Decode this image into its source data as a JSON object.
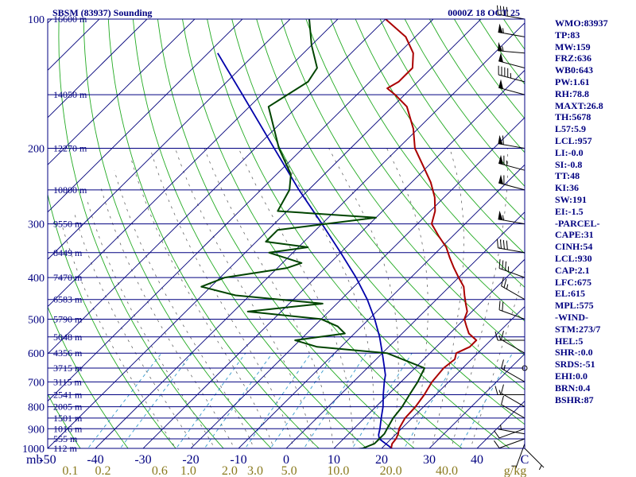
{
  "header": {
    "station": "SBSM (83937) Sounding",
    "time": "0000Z 18 OCT 25"
  },
  "colors": {
    "frame": "#000080",
    "isotherm": "#00007a",
    "isobar": "#000080",
    "dry_adiabat": "#22aa22",
    "moist_adiabat": "#666666",
    "mixing_ratio": "#3399cc",
    "temperature": "#aa0000",
    "dewpoint": "#004400",
    "parcel": "#0000aa",
    "text": "#000080"
  },
  "axes": {
    "pressure_axis_unit": "mb",
    "temperature_ticks": [
      "-50",
      "-40",
      "-30",
      "-20",
      "-10",
      "0",
      "10",
      "20",
      "30",
      "40",
      "C"
    ],
    "mixing_ratio_unit": "g/kg",
    "mixing_ratio_ticks": [
      "0.1",
      "0.2",
      "0.6",
      "1.0",
      "2.0",
      "3.0",
      "5.0",
      "10.0",
      "20.0",
      "40.0"
    ],
    "height_labels": [
      "16600 m",
      "14050 m",
      "12270 m",
      "10800 m",
      "9550 m",
      "8449 m",
      "7470 m",
      "6583 m",
      "5790 m",
      "5048 m",
      "4356 m",
      "3715 m",
      "3115 m",
      "2541 m",
      "2005 m",
      "1501 m",
      "1016 m",
      "555 m",
      "112 m"
    ]
  },
  "indices": [
    "WMO:83937",
    "TP:83",
    "MW:159",
    "FRZ:636",
    "WB0:643",
    "PW:1.61",
    "RH:78.8",
    "MAXT:26.8",
    "TH:5678",
    "L57:5.9",
    "LCL:957",
    "LI:-0.0",
    "SI:-0.8",
    "TT:48",
    "KI:36",
    "SW:191",
    "EI:-1.5",
    "-PARCEL-",
    "CAPE:31",
    "CINH:54",
    "LCL:930",
    "CAP:2.1",
    "LFC:675",
    "EL:615",
    "MPL:575",
    "-WIND-",
    "STM:273/7",
    "HEL:5",
    "SHR-:0.0",
    "SRDS:-51",
    "EHI:0.0",
    "BRN:0.4",
    "BSHR:87"
  ],
  "chart_data": {
    "type": "line",
    "diagram": "skew-t log-p",
    "pressure_levels": [
      100,
      200,
      300,
      400,
      500,
      600,
      700,
      800,
      900,
      1000
    ],
    "height_levels": [
      {
        "label": "16600 m",
        "p": 100
      },
      {
        "label": "14050 m",
        "p": 150
      },
      {
        "label": "12270 m",
        "p": 200
      },
      {
        "label": "10800 m",
        "p": 250
      },
      {
        "label": "9550 m",
        "p": 300
      },
      {
        "label": "8449 m",
        "p": 350
      },
      {
        "label": "7470 m",
        "p": 400
      },
      {
        "label": "6583 m",
        "p": 450
      },
      {
        "label": "5790 m",
        "p": 500
      },
      {
        "label": "5048 m",
        "p": 550
      },
      {
        "label": "4356 m",
        "p": 600
      },
      {
        "label": "3715 m",
        "p": 650
      },
      {
        "label": "3115 m",
        "p": 700
      },
      {
        "label": "2541 m",
        "p": 750
      },
      {
        "label": "2005 m",
        "p": 800
      },
      {
        "label": "1501 m",
        "p": 850
      },
      {
        "label": "1016 m",
        "p": 900
      },
      {
        "label": "555 m",
        "p": 950
      },
      {
        "label": "112 m",
        "p": 1000
      }
    ],
    "xlim": [
      -50,
      50
    ],
    "ylim": [
      1000,
      100
    ],
    "mixing_ratio_lines": [
      0.1,
      0.2,
      0.6,
      1.0,
      2.0,
      3.0,
      5.0,
      10.0,
      20.0,
      40.0
    ],
    "temperature_profile": [
      [
        1004,
        22.5
      ],
      [
        1000,
        22.0
      ],
      [
        975,
        21.2
      ],
      [
        950,
        21.0
      ],
      [
        925,
        20.4
      ],
      [
        900,
        19.5
      ],
      [
        850,
        18.5
      ],
      [
        800,
        18.3
      ],
      [
        750,
        17.6
      ],
      [
        700,
        16.5
      ],
      [
        650,
        16.0
      ],
      [
        620,
        16.5
      ],
      [
        600,
        15.5
      ],
      [
        580,
        17.0
      ],
      [
        560,
        17.0
      ],
      [
        540,
        14.0
      ],
      [
        520,
        12.0
      ],
      [
        500,
        10.0
      ],
      [
        480,
        9.0
      ],
      [
        460,
        7.0
      ],
      [
        440,
        5.0
      ],
      [
        420,
        3.0
      ],
      [
        400,
        0.0
      ],
      [
        380,
        -3.0
      ],
      [
        360,
        -6.0
      ],
      [
        340,
        -9.0
      ],
      [
        320,
        -13.0
      ],
      [
        300,
        -17.0
      ],
      [
        280,
        -19.0
      ],
      [
        260,
        -22.0
      ],
      [
        240,
        -26.0
      ],
      [
        220,
        -31.0
      ],
      [
        200,
        -36.5
      ],
      [
        180,
        -41.0
      ],
      [
        160,
        -47.0
      ],
      [
        150,
        -52.0
      ],
      [
        145,
        -55.0
      ],
      [
        140,
        -54.0
      ],
      [
        130,
        -54.0
      ],
      [
        120,
        -57.0
      ],
      [
        110,
        -62.0
      ],
      [
        100,
        -70.0
      ],
      [
        96,
        -74.0
      ]
    ],
    "dewpoint_profile": [
      [
        1004,
        14.5
      ],
      [
        1000,
        16.0
      ],
      [
        975,
        17.5
      ],
      [
        950,
        17.5
      ],
      [
        925,
        17.5
      ],
      [
        900,
        17.0
      ],
      [
        850,
        16.0
      ],
      [
        800,
        15.5
      ],
      [
        750,
        14.5
      ],
      [
        700,
        13.5
      ],
      [
        650,
        12.0
      ],
      [
        600,
        1.0
      ],
      [
        580,
        -15.0
      ],
      [
        560,
        -21.0
      ],
      [
        540,
        -12.0
      ],
      [
        520,
        -15.0
      ],
      [
        500,
        -20.0
      ],
      [
        480,
        -37.0
      ],
      [
        460,
        -23.0
      ],
      [
        440,
        -43.0
      ],
      [
        420,
        -52.0
      ],
      [
        400,
        -49.0
      ],
      [
        380,
        -38.0
      ],
      [
        370,
        -36.0
      ],
      [
        350,
        -45.0
      ],
      [
        340,
        -38.0
      ],
      [
        330,
        -48.0
      ],
      [
        310,
        -48.0
      ],
      [
        290,
        -30.0
      ],
      [
        280,
        -52.0
      ],
      [
        250,
        -54.0
      ],
      [
        230,
        -57.0
      ],
      [
        200,
        -65.0
      ],
      [
        160,
        -76.0
      ],
      [
        140,
        -73.0
      ],
      [
        130,
        -74.0
      ],
      [
        115,
        -80.0
      ],
      [
        100,
        -86.0
      ],
      [
        96,
        -89.0
      ]
    ],
    "parcel_profile": [
      [
        1004,
        22.5
      ],
      [
        950,
        17.5
      ],
      [
        930,
        16.5
      ],
      [
        900,
        15.5
      ],
      [
        850,
        13.5
      ],
      [
        800,
        11.5
      ],
      [
        750,
        9.0
      ],
      [
        700,
        6.5
      ],
      [
        675,
        5.3
      ],
      [
        650,
        3.6
      ],
      [
        600,
        0.0
      ],
      [
        550,
        -4.0
      ],
      [
        500,
        -8.8
      ],
      [
        450,
        -14.5
      ],
      [
        400,
        -21.5
      ],
      [
        350,
        -30.0
      ],
      [
        300,
        -40.0
      ],
      [
        250,
        -52.0
      ],
      [
        200,
        -66.0
      ],
      [
        150,
        -84.0
      ],
      [
        130,
        -93.0
      ],
      [
        120,
        -98.0
      ]
    ],
    "wind_barbs": [
      {
        "p": 1000,
        "dir": 135,
        "kt": 5
      },
      {
        "p": 975,
        "dir": 200,
        "kt": 5
      },
      {
        "p": 950,
        "dir": 250,
        "kt": 10
      },
      {
        "p": 925,
        "dir": 280,
        "kt": 5
      },
      {
        "p": 900,
        "dir": 250,
        "kt": 10
      },
      {
        "p": 850,
        "dir": 300,
        "kt": 10
      },
      {
        "p": 800,
        "dir": 300,
        "kt": 10
      },
      {
        "p": 750,
        "dir": 270,
        "kt": 15
      },
      {
        "p": 700,
        "dir": 300,
        "kt": 15
      },
      {
        "p": 650,
        "dir": 0,
        "kt": 0
      },
      {
        "p": 600,
        "dir": 300,
        "kt": 10
      },
      {
        "p": 560,
        "dir": 270,
        "kt": 15
      },
      {
        "p": 500,
        "dir": 290,
        "kt": 20
      },
      {
        "p": 450,
        "dir": 300,
        "kt": 25
      },
      {
        "p": 400,
        "dir": 290,
        "kt": 35
      },
      {
        "p": 350,
        "dir": 280,
        "kt": 40
      },
      {
        "p": 300,
        "dir": 280,
        "kt": 55
      },
      {
        "p": 250,
        "dir": 285,
        "kt": 60
      },
      {
        "p": 225,
        "dir": 285,
        "kt": 65
      },
      {
        "p": 200,
        "dir": 280,
        "kt": 60
      },
      {
        "p": 150,
        "dir": 285,
        "kt": 50
      },
      {
        "p": 140,
        "dir": 285,
        "kt": 45
      },
      {
        "p": 130,
        "dir": 285,
        "kt": 50
      },
      {
        "p": 120,
        "dir": 275,
        "kt": 55
      },
      {
        "p": 110,
        "dir": 280,
        "kt": 55
      },
      {
        "p": 100,
        "dir": 280,
        "kt": 40
      }
    ]
  }
}
